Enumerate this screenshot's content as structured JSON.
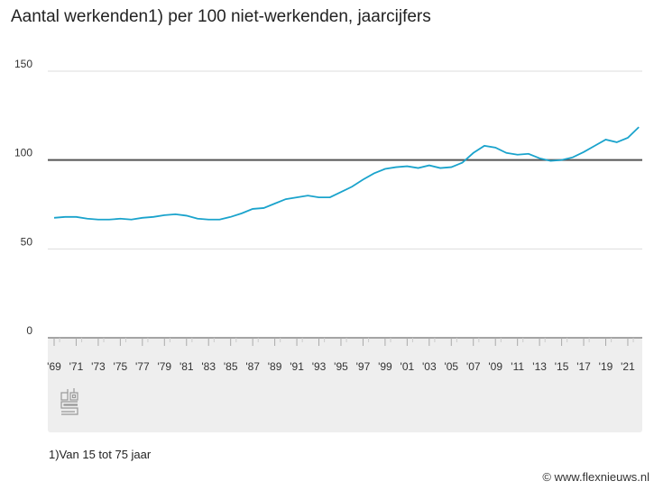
{
  "chart_data": {
    "type": "line",
    "title": "Aantal werkenden1) per 100 niet-werkenden, jaarcijfers",
    "xlabel": "",
    "ylabel": "",
    "ylim": [
      0,
      150
    ],
    "yticks": [
      0,
      50,
      100,
      150
    ],
    "xlim": [
      1969,
      2022
    ],
    "xtick_labels": [
      "'69",
      "'71",
      "'73",
      "'75",
      "'77",
      "'79",
      "'81",
      "'83",
      "'85",
      "'87",
      "'89",
      "'91",
      "'93",
      "'95",
      "'97",
      "'99",
      "'01",
      "'03",
      "'05",
      "'07",
      "'09",
      "'11",
      "'13",
      "'15",
      "'17",
      "'19",
      "'21"
    ],
    "grid": true,
    "reference_line": 100,
    "x": [
      1969,
      1970,
      1971,
      1972,
      1973,
      1974,
      1975,
      1976,
      1977,
      1978,
      1979,
      1980,
      1981,
      1982,
      1983,
      1984,
      1985,
      1986,
      1987,
      1988,
      1989,
      1990,
      1991,
      1992,
      1993,
      1994,
      1995,
      1996,
      1997,
      1998,
      1999,
      2000,
      2001,
      2002,
      2003,
      2004,
      2005,
      2006,
      2007,
      2008,
      2009,
      2010,
      2011,
      2012,
      2013,
      2014,
      2015,
      2016,
      2017,
      2018,
      2019,
      2020,
      2021,
      2022
    ],
    "series": [
      {
        "values": [
          67.5,
          68,
          68,
          67,
          66.5,
          66.5,
          67,
          66.5,
          67.5,
          68,
          69,
          69.5,
          68.7,
          67,
          66.5,
          66.5,
          68,
          70,
          72.5,
          73,
          75.5,
          78,
          79,
          80,
          79,
          79,
          82,
          85,
          89,
          92.5,
          95,
          96,
          96.5,
          95.5,
          97,
          95.5,
          96,
          98.5,
          104,
          108,
          107,
          104,
          103,
          103.5,
          101,
          99.5,
          100,
          101.5,
          104.5,
          108,
          111.5,
          110,
          112.5,
          118.5
        ]
      }
    ],
    "colors": {
      "line": "#1aa3cc",
      "reference": "#555555",
      "grid": "#dddddd",
      "band": "#eeeeee"
    }
  },
  "footnote": "1)Van 15 tot 75 jaar",
  "credit": "© www.flexnieuws.nl",
  "logo_text": "cbs"
}
